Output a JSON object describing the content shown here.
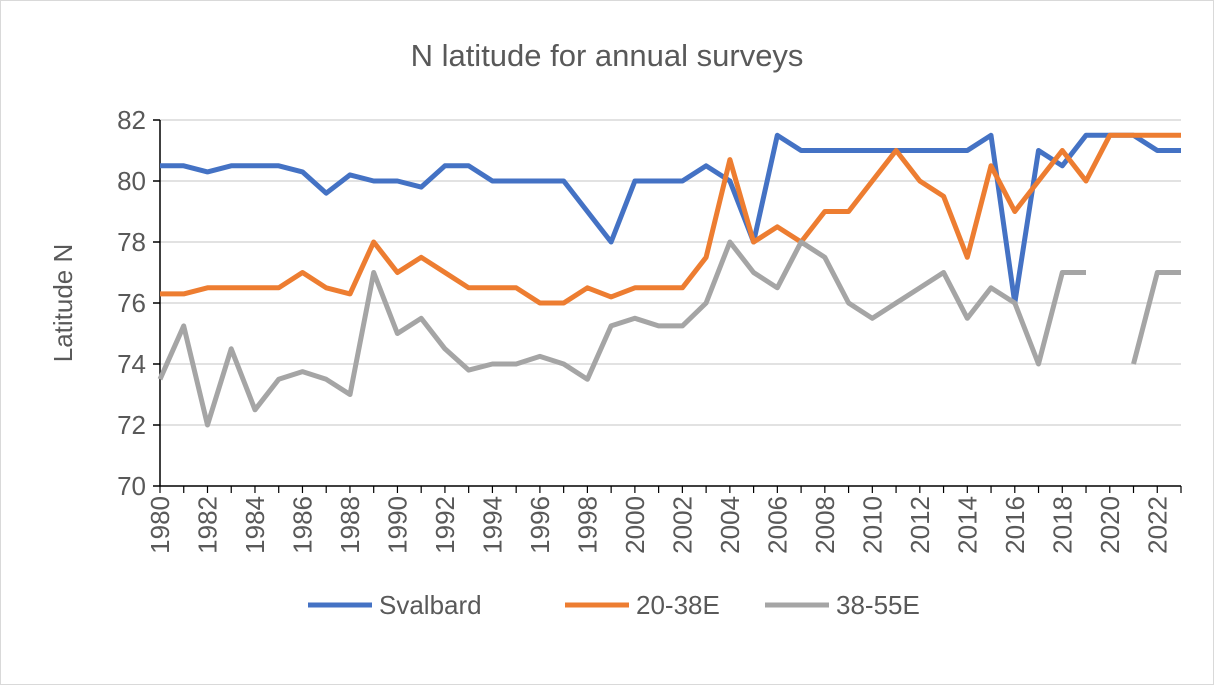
{
  "chart_data": {
    "type": "line",
    "title": "N latitude for annual surveys",
    "ylabel": "Latitude N",
    "xlabel": "",
    "ylim": [
      70,
      82
    ],
    "yticks": [
      70,
      72,
      74,
      76,
      78,
      80,
      82
    ],
    "x": [
      1980,
      1981,
      1982,
      1983,
      1984,
      1985,
      1986,
      1987,
      1988,
      1989,
      1990,
      1991,
      1992,
      1993,
      1994,
      1995,
      1996,
      1997,
      1998,
      1999,
      2000,
      2001,
      2002,
      2003,
      2004,
      2005,
      2006,
      2007,
      2008,
      2009,
      2010,
      2011,
      2012,
      2013,
      2014,
      2015,
      2016,
      2017,
      2018,
      2019,
      2020,
      2021,
      2022,
      2023
    ],
    "xtick_labels": [
      "1980",
      "1982",
      "1984",
      "1986",
      "1988",
      "1990",
      "1992",
      "1994",
      "1996",
      "1998",
      "2000",
      "2002",
      "2004",
      "2006",
      "2008",
      "2010",
      "2012",
      "2014",
      "2016",
      "2018",
      "2020",
      "2022"
    ],
    "grid": "horizontal",
    "legend_position": "bottom",
    "series": [
      {
        "name": "Svalbard",
        "color": "#4472c4",
        "values": [
          80.5,
          80.5,
          80.3,
          80.5,
          80.5,
          80.5,
          80.3,
          79.6,
          80.2,
          80,
          80,
          79.8,
          80.5,
          80.5,
          80,
          80,
          80,
          80,
          79,
          78,
          80,
          80,
          80,
          80.5,
          80,
          78,
          81.5,
          81,
          81,
          81,
          81,
          81,
          81,
          81,
          81,
          81.5,
          76,
          81,
          80.5,
          81.5,
          81.5,
          81.5,
          81,
          81
        ]
      },
      {
        "name": "20-38E",
        "color": "#ed7d31",
        "values": [
          76.3,
          76.3,
          76.5,
          76.5,
          76.5,
          76.5,
          77,
          76.5,
          76.3,
          78,
          77,
          77.5,
          77,
          76.5,
          76.5,
          76.5,
          76,
          76,
          76.5,
          76.2,
          76.5,
          76.5,
          76.5,
          77.5,
          80.7,
          78,
          78.5,
          78,
          79,
          79,
          80,
          81,
          80,
          79.5,
          77.5,
          80.5,
          79,
          80,
          81,
          80,
          81.5,
          81.5,
          81.5,
          81.5
        ]
      },
      {
        "name": "38-55E",
        "color": "#a5a5a5",
        "values": [
          73.5,
          75.25,
          72,
          74.5,
          72.5,
          73.5,
          73.75,
          73.5,
          73,
          77,
          75,
          75.5,
          74.5,
          73.8,
          74,
          74,
          74.25,
          74,
          73.5,
          75.25,
          75.5,
          75.25,
          75.25,
          76,
          78,
          77,
          76.5,
          78,
          77.5,
          76,
          75.5,
          76,
          76.5,
          77,
          75.5,
          76.5,
          76,
          74,
          77,
          77,
          null,
          74,
          77,
          77
        ]
      }
    ]
  }
}
